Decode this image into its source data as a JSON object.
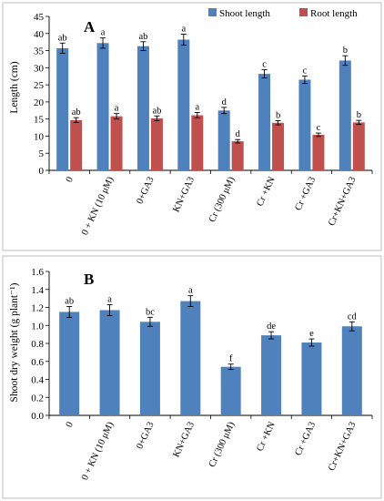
{
  "colors": {
    "shoot": "#4f81bd",
    "root": "#c0504d"
  },
  "chart_data": [
    {
      "type": "bar",
      "panel_label": "A",
      "ylabel": "Length (cm)",
      "ylim": [
        0,
        45
      ],
      "yticks": [
        "0",
        "5",
        "10",
        "15",
        "20",
        "25",
        "30",
        "35",
        "40",
        "45"
      ],
      "legend_position": "top-right",
      "categories": [
        "0",
        "0 + KN (10 μM)",
        "0+GA3",
        "KN+GA3",
        "Cr (300 μM)",
        "Cr +KN",
        "Cr +GA3",
        "Cr+KN+GA3"
      ],
      "series": [
        {
          "name": "Shoot length",
          "color": "#4f81bd",
          "values": [
            35.7,
            37.2,
            36.3,
            38.2,
            17.5,
            28.2,
            26.5,
            32.1
          ],
          "errors": [
            1.5,
            1.5,
            1.3,
            1.6,
            0.9,
            1.2,
            1.1,
            1.4
          ],
          "letters": [
            "ab",
            "a",
            "ab",
            "a",
            "d",
            "c",
            "c",
            "b"
          ]
        },
        {
          "name": "Root length",
          "color": "#c0504d",
          "values": [
            14.7,
            15.8,
            15.2,
            16.1,
            8.5,
            13.9,
            10.4,
            14.0
          ],
          "errors": [
            0.7,
            0.8,
            0.7,
            0.8,
            0.5,
            0.6,
            0.5,
            0.6
          ],
          "letters": [
            "ab",
            "a",
            "ab",
            "a",
            "d",
            "b",
            "c",
            "b"
          ]
        }
      ]
    },
    {
      "type": "bar",
      "panel_label": "B",
      "ylabel": "Shoot dry weight (g plant⁻¹)",
      "ylim": [
        0,
        1.6
      ],
      "yticks": [
        "0.0",
        "0.2",
        "0.4",
        "0.6",
        "0.8",
        "1.0",
        "1.2",
        "1.4",
        "1.6"
      ],
      "categories": [
        "0",
        "0 + KN (10 μM)",
        "0+GA3",
        "KN+GA3",
        "Cr (300 μM)",
        "Cr +KN",
        "Cr +GA3",
        "Cr+KN+GA3"
      ],
      "series": [
        {
          "color": "#4f81bd",
          "values": [
            1.15,
            1.17,
            1.04,
            1.27,
            0.54,
            0.89,
            0.81,
            0.99
          ],
          "errors": [
            0.06,
            0.06,
            0.05,
            0.06,
            0.03,
            0.04,
            0.04,
            0.05
          ],
          "letters": [
            "ab",
            "a",
            "bc",
            "a",
            "f",
            "de",
            "e",
            "cd"
          ]
        }
      ]
    }
  ]
}
